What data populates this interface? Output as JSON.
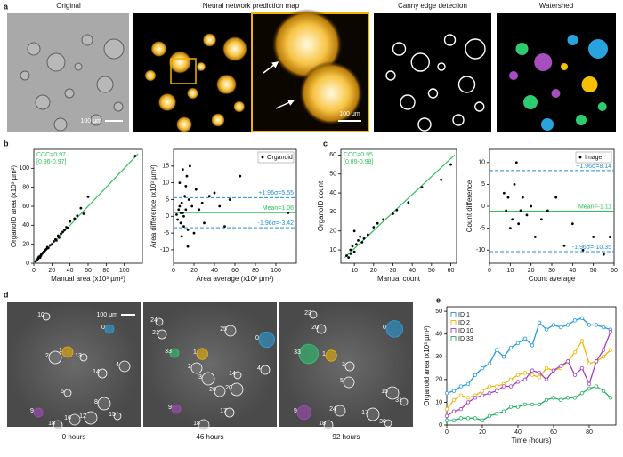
{
  "panel_labels": [
    "a",
    "b",
    "c",
    "d",
    "e"
  ],
  "panel_a": {
    "titles": [
      "Original",
      "Neural network prediction map",
      "Canny edge detection",
      "Watershed"
    ],
    "scale_bars": [
      "100 μm",
      "100 μm"
    ]
  },
  "panel_d": {
    "scale_bar": "100 μm",
    "images": [
      {
        "caption": "0 hours",
        "labels": [
          "10",
          "0",
          "1",
          "2",
          "13",
          "14",
          "4",
          "8",
          "6",
          "9",
          "16",
          "12",
          "15",
          "18"
        ]
      },
      {
        "caption": "46 hours",
        "labels": [
          "24",
          "21",
          "25",
          "0",
          "33",
          "1",
          "2",
          "3",
          "14",
          "4",
          "26",
          "20",
          "9",
          "17",
          "18"
        ]
      },
      {
        "caption": "92 hours",
        "labels": [
          "23",
          "20",
          "0",
          "33",
          "1",
          "3",
          "5",
          "15",
          "31",
          "9",
          "24",
          "17",
          "30",
          "18"
        ]
      }
    ]
  },
  "chart_data": [
    {
      "type": "scatter",
      "xlabel": "Manual area (x10³ µm²)",
      "ylabel": "OrganoID area (x10³ µm²)",
      "x": [
        2,
        3,
        4,
        5,
        5,
        6,
        7,
        8,
        8,
        9,
        10,
        11,
        12,
        13,
        14,
        15,
        16,
        18,
        20,
        22,
        24,
        25,
        27,
        28,
        30,
        32,
        34,
        36,
        38,
        40,
        45,
        48,
        52,
        55,
        60,
        112
      ],
      "values": [
        2,
        3,
        4,
        6,
        5,
        7,
        6,
        9,
        8,
        10,
        11,
        12,
        13,
        14,
        15,
        17,
        16,
        19,
        20,
        23,
        25,
        24,
        29,
        27,
        31,
        33,
        35,
        38,
        37,
        44,
        47,
        50,
        58,
        52,
        70,
        113
      ],
      "color": "#000000",
      "fit": {
        "x": [
          0,
          115
        ],
        "values": [
          0,
          115
        ],
        "color": "#2ec25a"
      },
      "annotations": [
        "CCC=0.97",
        "[0.96-0.97]"
      ],
      "annotation_color": "#2ec25a",
      "xlim": [
        0,
        120
      ],
      "xticks": [
        0,
        20,
        40,
        60,
        80,
        100
      ],
      "ylim": [
        0,
        120
      ],
      "yticks": [
        0,
        20,
        40,
        60,
        80,
        100
      ]
    },
    {
      "type": "scatter",
      "xlabel": "Area average (x10³ µm²)",
      "ylabel": "Area difference (x10³ µm²)",
      "series": [
        {
          "name": "Organoid",
          "color": "#000000",
          "x": [
            3,
            4,
            5,
            6,
            7,
            8,
            9,
            10,
            11,
            12,
            13,
            14,
            15,
            16,
            18,
            20,
            22,
            25,
            28,
            30,
            35,
            40,
            45,
            50,
            55,
            65,
            112,
            6,
            8,
            10,
            12,
            14,
            9,
            7
          ],
          "values": [
            0.5,
            -1,
            2,
            3,
            -2,
            4,
            1,
            -3,
            6,
            2,
            12,
            -4,
            5,
            15,
            3,
            -5,
            8,
            2,
            4,
            -2,
            6,
            7,
            3,
            -3,
            5,
            12,
            1,
            10,
            -6,
            0,
            9,
            -9,
            14,
            1
          ]
        }
      ],
      "legend": "upper right",
      "hlines": [
        {
          "value": 5.55,
          "label": "+1.96σ=5.55",
          "color": "#1f8fd6",
          "dashed": true
        },
        {
          "value": 1.06,
          "label": "Mean=1.06",
          "color": "#2ec25a",
          "dashed": false
        },
        {
          "value": -3.42,
          "label": "-1.96σ=-3.42",
          "color": "#1f8fd6",
          "dashed": true
        }
      ],
      "xlim": [
        0,
        120
      ],
      "xticks": [
        0,
        20,
        40,
        60,
        80,
        100
      ],
      "ylim": [
        -14,
        20
      ],
      "yticks": [
        -10,
        -5,
        0,
        5,
        10,
        15
      ]
    },
    {
      "type": "scatter",
      "xlabel": "Manual count",
      "ylabel": "OrganoID count",
      "x": [
        6,
        7,
        8,
        8,
        9,
        10,
        10,
        11,
        12,
        13,
        14,
        15,
        17,
        20,
        22,
        25,
        30,
        32,
        38,
        45,
        55,
        60
      ],
      "values": [
        7,
        6,
        10,
        8,
        12,
        9,
        20,
        13,
        15,
        17,
        14,
        16,
        18,
        22,
        24,
        26,
        29,
        31,
        35,
        43,
        47,
        55
      ],
      "color": "#000000",
      "fit": {
        "x": [
          5,
          62
        ],
        "values": [
          6,
          60
        ],
        "color": "#2ec25a"
      },
      "annotations": [
        "CCC=0.95",
        "[0.89-0.98]"
      ],
      "annotation_color": "#2ec25a",
      "xlim": [
        3,
        63
      ],
      "xticks": [
        10,
        20,
        30,
        40,
        50,
        60
      ],
      "ylim": [
        3,
        63
      ],
      "yticks": [
        10,
        20,
        30,
        40,
        50,
        60
      ]
    },
    {
      "type": "scatter",
      "xlabel": "Count average",
      "ylabel": "Count difference",
      "series": [
        {
          "name": "Image",
          "color": "#000000",
          "x": [
            7,
            8,
            9,
            10,
            11,
            12,
            13,
            14,
            15,
            16,
            18,
            20,
            22,
            25,
            28,
            32,
            36,
            40,
            45,
            50,
            55,
            58
          ],
          "values": [
            3,
            -1,
            2,
            -5,
            -3,
            5,
            10,
            -4,
            -1,
            2,
            -2,
            0,
            -7,
            -3,
            -1,
            2,
            -9,
            -4,
            -10,
            -7,
            -11,
            -7
          ]
        }
      ],
      "legend": "upper right",
      "hlines": [
        {
          "value": 8.14,
          "label": "+1.96σ=8.14",
          "color": "#1f8fd6",
          "dashed": true
        },
        {
          "value": -1.11,
          "label": "Mean=-1.11",
          "color": "#2ec25a",
          "dashed": false
        },
        {
          "value": -10.35,
          "label": "-1.96σ=-10.35",
          "color": "#1f8fd6",
          "dashed": true
        }
      ],
      "xlim": [
        0,
        60
      ],
      "xticks": [
        0,
        10,
        20,
        30,
        40,
        50,
        60
      ],
      "ylim": [
        -13,
        13
      ],
      "yticks": [
        -10,
        -5,
        0,
        5,
        10
      ]
    },
    {
      "type": "line",
      "xlabel": "Time (hours)",
      "ylabel": "Organoid area (x10³ µm²)",
      "x": [
        0,
        4,
        8,
        12,
        16,
        20,
        24,
        28,
        32,
        36,
        40,
        44,
        48,
        52,
        56,
        60,
        64,
        68,
        72,
        76,
        80,
        84,
        88,
        92
      ],
      "series": [
        {
          "name": "ID 1",
          "color": "#1f9bd7",
          "values": [
            14,
            15,
            17,
            18,
            22,
            25,
            27,
            33,
            30,
            34,
            36,
            38,
            35,
            45,
            42,
            44,
            43,
            44,
            46,
            47,
            44,
            44,
            43,
            42
          ]
        },
        {
          "name": "ID 2",
          "color": "#f0b400",
          "values": [
            7,
            11,
            13,
            12,
            13,
            15,
            17,
            17,
            18,
            20,
            22,
            23,
            22,
            21,
            25,
            24,
            25,
            28,
            32,
            37,
            27,
            28,
            30,
            33
          ]
        },
        {
          "name": "ID 10",
          "color": "#a23bc4",
          "values": [
            4,
            6,
            7,
            10,
            12,
            13,
            14,
            15,
            17,
            17,
            19,
            20,
            24,
            23,
            20,
            24,
            26,
            28,
            22,
            25,
            18,
            28,
            33,
            41
          ]
        },
        {
          "name": "ID 33",
          "color": "#20b060",
          "values": [
            2,
            2,
            3,
            3,
            3,
            2,
            4,
            5,
            6,
            8,
            8,
            9,
            9,
            9,
            11,
            12,
            11,
            12,
            12,
            14,
            16,
            17,
            15,
            12
          ]
        }
      ],
      "legend": "upper left",
      "xlim": [
        0,
        95
      ],
      "xticks": [
        0,
        20,
        40,
        60,
        80
      ],
      "ylim": [
        0,
        52
      ],
      "yticks": [
        0,
        10,
        20,
        30,
        40,
        50
      ]
    }
  ]
}
